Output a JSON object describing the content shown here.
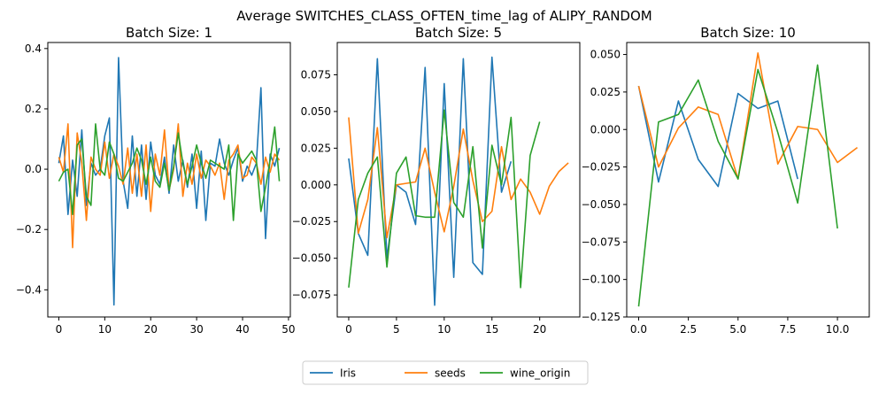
{
  "chart_data": {
    "title": "Average SWITCHES_CLASS_OFTEN_time_lag of ALIPY_RANDOM",
    "legend": {
      "placement": "bottom-center",
      "entries": [
        "Iris",
        "seeds",
        "wine_origin"
      ]
    },
    "series_colors": {
      "Iris": "#1f77b4",
      "seeds": "#ff7f0e",
      "wine_origin": "#2ca02c"
    },
    "panels": [
      {
        "type": "line",
        "title": "Batch Size: 1",
        "xlim": [
          -2.4,
          50.4
        ],
        "ylim": [
          -0.49,
          0.42
        ],
        "xticks": [
          0,
          10,
          20,
          30,
          40,
          50
        ],
        "xtick_labels": [
          "0",
          "10",
          "20",
          "30",
          "40",
          "50"
        ],
        "yticks": [
          -0.4,
          -0.2,
          0.0,
          0.2,
          0.4
        ],
        "ytick_labels": [
          "−0.4",
          "−0.2",
          "0.0",
          "0.2",
          "0.4"
        ],
        "grid": false,
        "series": [
          {
            "name": "Iris",
            "values": [
              0.02,
              0.11,
              -0.15,
              0.03,
              -0.09,
              0.13,
              -0.12,
              0.02,
              -0.02,
              0.0,
              0.11,
              0.17,
              -0.45,
              0.37,
              -0.04,
              -0.13,
              0.11,
              -0.09,
              0.08,
              -0.1,
              0.09,
              -0.02,
              -0.05,
              0.04,
              -0.08,
              0.08,
              -0.04,
              0.03,
              -0.06,
              0.05,
              -0.13,
              0.06,
              -0.17,
              0.02,
              0.01,
              0.1,
              0.02,
              -0.02,
              0.03,
              0.07,
              -0.04,
              0.01,
              -0.02,
              0.02,
              0.27,
              -0.23,
              0.05,
              0.01,
              0.07
            ]
          },
          {
            "name": "seeds",
            "values": [
              0.04,
              -0.01,
              0.15,
              -0.26,
              0.12,
              0.02,
              -0.17,
              0.04,
              0.0,
              -0.02,
              0.09,
              -0.03,
              0.05,
              0.01,
              -0.05,
              0.07,
              -0.08,
              0.05,
              -0.09,
              0.08,
              -0.14,
              0.05,
              -0.02,
              0.13,
              -0.07,
              0.0,
              0.15,
              -0.09,
              0.02,
              -0.05,
              0.05,
              -0.03,
              0.03,
              0.01,
              -0.02,
              0.02,
              -0.1,
              0.03,
              0.05,
              0.08,
              -0.03,
              -0.02,
              0.04,
              0.02,
              -0.05,
              0.04,
              -0.01,
              0.05,
              0.03
            ]
          },
          {
            "name": "wine_origin",
            "values": [
              -0.04,
              -0.01,
              0.0,
              -0.15,
              0.08,
              0.1,
              -0.09,
              -0.12,
              0.15,
              0.0,
              -0.02,
              0.09,
              0.05,
              -0.03,
              -0.04,
              -0.01,
              0.02,
              0.07,
              0.03,
              -0.05,
              0.04,
              -0.04,
              -0.06,
              0.02,
              -0.07,
              0.01,
              0.12,
              0.02,
              -0.05,
              0.01,
              0.08,
              0.02,
              -0.03,
              0.03,
              0.02,
              0.01,
              0.0,
              0.08,
              -0.17,
              0.05,
              0.02,
              0.04,
              0.06,
              0.03,
              -0.14,
              -0.06,
              0.03,
              0.14,
              -0.04
            ]
          }
        ]
      },
      {
        "type": "line",
        "title": "Batch Size: 5",
        "xlim": [
          -1.2,
          24.2
        ],
        "ylim": [
          -0.09,
          0.097
        ],
        "xticks": [
          0,
          5,
          10,
          15,
          20
        ],
        "xtick_labels": [
          "0",
          "5",
          "10",
          "15",
          "20"
        ],
        "yticks": [
          -0.075,
          -0.05,
          -0.025,
          0.0,
          0.025,
          0.05,
          0.075
        ],
        "ytick_labels": [
          "−0.075",
          "−0.050",
          "−0.025",
          "0.000",
          "0.025",
          "0.050",
          "0.075"
        ],
        "grid": false,
        "series": [
          {
            "name": "Iris",
            "values": [
              0.018,
              -0.033,
              -0.048,
              0.086,
              -0.05,
              0.0,
              -0.005,
              -0.027,
              0.08,
              -0.082,
              0.069,
              -0.063,
              0.086,
              -0.053,
              -0.061,
              0.087,
              -0.005,
              0.016
            ]
          },
          {
            "name": "seeds",
            "values": [
              0.046,
              -0.033,
              -0.01,
              0.039,
              -0.036,
              0.0,
              0.001,
              0.002,
              0.025,
              -0.005,
              -0.032,
              -0.001,
              0.038,
              0.003,
              -0.025,
              -0.018,
              0.026,
              -0.01,
              0.004,
              -0.005,
              -0.02,
              -0.001,
              0.009,
              0.015
            ]
          },
          {
            "name": "wine_origin",
            "values": [
              -0.07,
              -0.01,
              0.008,
              0.019,
              -0.056,
              0.008,
              0.019,
              -0.021,
              -0.022,
              -0.022,
              0.051,
              -0.012,
              -0.022,
              0.026,
              -0.043,
              0.027,
              0.0,
              0.046,
              -0.07,
              0.02,
              0.043
            ]
          }
        ]
      },
      {
        "type": "line",
        "title": "Batch Size: 10",
        "xlim": [
          -0.6,
          11.6
        ],
        "ylim": [
          -0.125,
          0.058
        ],
        "xticks": [
          0.0,
          2.5,
          5.0,
          7.5,
          10.0
        ],
        "xtick_labels": [
          "0.0",
          "2.5",
          "5.0",
          "7.5",
          "10.0"
        ],
        "yticks": [
          -0.125,
          -0.1,
          -0.075,
          -0.05,
          -0.025,
          0.0,
          0.025,
          0.05
        ],
        "ytick_labels": [
          "−0.125",
          "−0.100",
          "−0.075",
          "−0.050",
          "−0.025",
          "0.000",
          "0.025",
          "0.050"
        ],
        "grid": false,
        "series": [
          {
            "name": "Iris",
            "values": [
              0.029,
              -0.035,
              0.019,
              -0.02,
              -0.038,
              0.024,
              0.014,
              0.019,
              -0.033
            ]
          },
          {
            "name": "seeds",
            "values": [
              0.029,
              -0.025,
              0.001,
              0.015,
              0.01,
              -0.033,
              0.051,
              -0.023,
              0.002,
              0.0,
              -0.022,
              -0.012
            ]
          },
          {
            "name": "wine_origin",
            "values": [
              -0.118,
              0.005,
              0.01,
              0.033,
              -0.008,
              -0.033,
              0.04,
              -0.002,
              -0.049,
              0.043,
              -0.066
            ]
          }
        ]
      }
    ]
  }
}
